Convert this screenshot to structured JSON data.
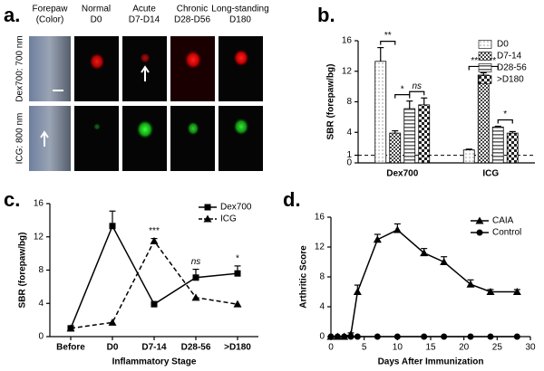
{
  "panel_a": {
    "label": "a.",
    "columns": [
      [
        "Forepaw",
        "(Color)"
      ],
      [
        "Normal",
        "D0"
      ],
      [
        "Acute",
        "D7-D14"
      ],
      [
        "Chronic",
        "D28-D56"
      ],
      [
        "Long-standing",
        "D180"
      ]
    ],
    "rows": [
      "Dex700: 700 nm",
      "ICG: 800 nm"
    ]
  },
  "chart_data": [
    {
      "type": "bar",
      "label": "b.",
      "y_label": "SBR (forepaw/bg)",
      "categories": [
        "Dex700",
        "ICG"
      ],
      "series": [
        {
          "name": "D0",
          "color": "#9a9a9a",
          "pattern": "dots",
          "values": [
            13.3,
            1.7
          ],
          "errors": [
            1.8,
            0.1
          ]
        },
        {
          "name": "D7-14",
          "color": "#444444",
          "pattern": "checker",
          "values": [
            3.9,
            11.5
          ],
          "errors": [
            0.3,
            0.3
          ]
        },
        {
          "name": "D28-56",
          "color": "#666666",
          "pattern": "stripes",
          "values": [
            7.1,
            4.7
          ],
          "errors": [
            1.0,
            0.1
          ]
        },
        {
          "name": ">D180",
          "color": "#222222",
          "pattern": "bigchecker",
          "values": [
            7.6,
            3.9
          ],
          "errors": [
            0.9,
            0.2
          ]
        }
      ],
      "ylim": [
        0,
        16
      ],
      "yticks": [
        0,
        1,
        4,
        8,
        12,
        16
      ],
      "ref_line": 1,
      "annotations": [
        {
          "text": "**",
          "category": 0,
          "series": [
            0,
            1
          ]
        },
        {
          "text": "*",
          "category": 0,
          "series": [
            1,
            2
          ]
        },
        {
          "text": "ns",
          "category": 0,
          "series": [
            2,
            3
          ]
        },
        {
          "text": "***",
          "category": 1,
          "series": [
            0,
            1
          ]
        },
        {
          "text": "***",
          "category": 1,
          "series": [
            1,
            2
          ]
        },
        {
          "text": "*",
          "category": 1,
          "series": [
            2,
            3
          ]
        }
      ],
      "legend": "upper right"
    },
    {
      "type": "line",
      "label": "c.",
      "x_label": "Inflammatory Stage",
      "y_label": "SBR (forepaw/bg)",
      "categories": [
        "Before",
        "D0",
        "D7-14",
        "D28-56",
        ">D180"
      ],
      "series": [
        {
          "name": "Dex700",
          "color": "#000000",
          "marker": "square",
          "dashed": false,
          "values": [
            1,
            13.3,
            3.9,
            7.1,
            7.6
          ],
          "errors": [
            null,
            1.8,
            0.3,
            1.0,
            0.9
          ]
        },
        {
          "name": "ICG",
          "color": "#000000",
          "marker": "triangle",
          "dashed": true,
          "values": [
            1,
            1.7,
            11.5,
            4.7,
            3.9
          ],
          "errors": [
            null,
            null,
            0.3,
            null,
            null
          ]
        }
      ],
      "ylim": [
        0,
        16
      ],
      "yticks": [
        0,
        4,
        8,
        12,
        16
      ],
      "annotations": [
        {
          "text": "***",
          "category": 2
        },
        {
          "text": "ns",
          "category": 3
        },
        {
          "text": "*",
          "category": 4
        }
      ],
      "legend": "upper right"
    },
    {
      "type": "line",
      "label": "d.",
      "x_label": "Days After Immunization",
      "y_label": "Arthritic Score",
      "series": [
        {
          "name": "CAIA",
          "color": "#000000",
          "marker": "triangle",
          "dashed": false,
          "x": [
            0,
            1,
            2,
            3,
            4,
            7,
            10,
            14,
            17,
            21,
            24,
            28
          ],
          "values": [
            0,
            0,
            0,
            0.3,
            6,
            13,
            14.3,
            11.2,
            10,
            7,
            6,
            6
          ],
          "errors": [
            null,
            null,
            null,
            0.2,
            0.9,
            0.7,
            0.8,
            0.6,
            0.7,
            0.6,
            0.3,
            0.3
          ]
        },
        {
          "name": "Control",
          "color": "#000000",
          "marker": "circle",
          "dashed": false,
          "x": [
            0,
            1,
            2,
            3,
            4,
            7,
            10,
            14,
            17,
            21,
            24,
            28
          ],
          "values": [
            0,
            0,
            0,
            0,
            0,
            0,
            0,
            0,
            0,
            0,
            0,
            0
          ]
        }
      ],
      "xlim": [
        0,
        30
      ],
      "xticks": [
        0,
        5,
        10,
        15,
        20,
        25,
        30
      ],
      "ylim": [
        0,
        16
      ],
      "yticks": [
        0,
        4,
        8,
        12,
        16
      ],
      "legend": "upper right"
    }
  ]
}
